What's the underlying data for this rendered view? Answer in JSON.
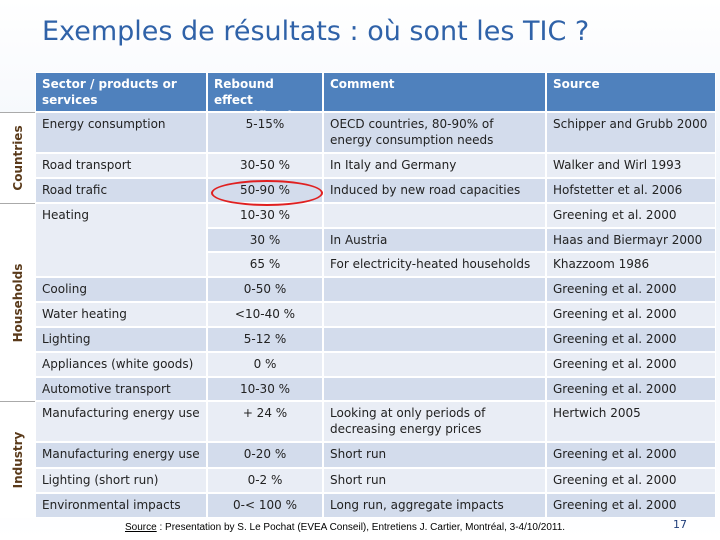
{
  "title": "Exemples de résultats : où sont les TIC ?",
  "table": {
    "header": [
      "Sector / products or services",
      "Rebound effect quantification",
      "Comment",
      "Source"
    ],
    "groups": [
      "Countries",
      "Households",
      "Industry"
    ],
    "rows": [
      [
        "Energy  consumption",
        "5-15%",
        "OECD countries, 80-90% of energy consumption needs",
        "Schipper and Grubb 2000"
      ],
      [
        "Road transport",
        "30-50 %",
        "In Italy and Germany",
        "Walker and Wirl 1993"
      ],
      [
        "Road trafic",
        "50-90 %",
        "Induced by new road capacities",
        "Hofstetter et al. 2006"
      ],
      [
        "Heating",
        "10-30 %",
        null,
        "Greening et al. 2000"
      ],
      [
        null,
        "30 %",
        "In Austria",
        "Haas and Biermayr 2000"
      ],
      [
        null,
        "65 %",
        "For electricity-heated households",
        "Khazzoom 1986"
      ],
      [
        "Cooling",
        "0-50 %",
        null,
        "Greening et al. 2000"
      ],
      [
        "Water heating",
        "<10-40 %",
        null,
        "Greening et al. 2000"
      ],
      [
        "Lighting",
        "5-12 %",
        null,
        "Greening et al. 2000"
      ],
      [
        "Appliances (white goods)",
        "0 %",
        null,
        "Greening et al. 2000"
      ],
      [
        "Automotive transport",
        "10-30 %",
        null,
        "Greening et al. 2000"
      ],
      [
        "Manufacturing energy use",
        "+ 24 %",
        "Looking at only periods of decreasing energy prices",
        "Hertwich 2005"
      ],
      [
        "Manufacturing energy use",
        "0-20 %",
        "Short run",
        "Greening et al. 2000"
      ],
      [
        "Lighting (short run)",
        "0-2 %",
        "Short run",
        "Greening et al. 2000"
      ],
      [
        "Environmental impacts",
        "0-< 100 %",
        "Long run, aggregate impacts",
        "Greening et al. 2000"
      ]
    ]
  },
  "footer": {
    "source_label": "Source",
    "source_text": " : Presentation by S. Le Pochat (EVEA Conseil), Entretiens J. Cartier, Montréal, 3-4/10/2011.",
    "page": "17"
  }
}
